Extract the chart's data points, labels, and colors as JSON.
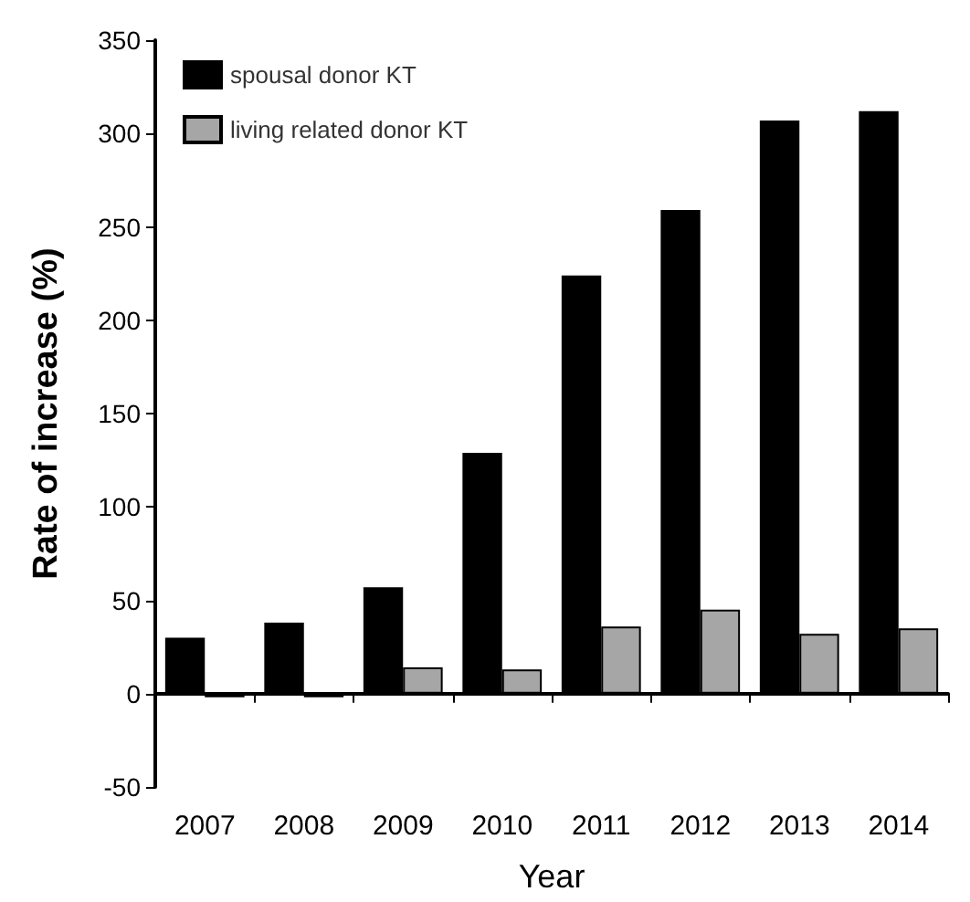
{
  "chart_data": {
    "type": "bar",
    "xlabel": "Year",
    "ylabel": "Rate of increase (%)",
    "categories": [
      "2007",
      "2008",
      "2009",
      "2010",
      "2011",
      "2012",
      "2013",
      "2014"
    ],
    "series": [
      {
        "name": "spousal donor KT",
        "color": "#000000",
        "values": [
          30,
          38,
          57,
          129,
          224,
          259,
          307,
          312
        ]
      },
      {
        "name": "living related donor KT",
        "color": "#a6a6a6",
        "values": [
          -2,
          -2,
          14,
          13,
          36,
          45,
          32,
          35
        ]
      }
    ],
    "ylim": [
      -50,
      350
    ],
    "yticks": [
      -50,
      0,
      50,
      100,
      150,
      200,
      250,
      300,
      350
    ],
    "legend": "top left"
  }
}
